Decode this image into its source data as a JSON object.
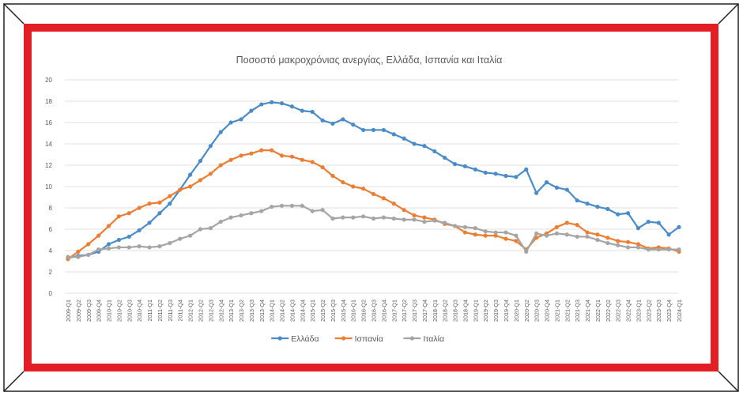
{
  "colors": {
    "border": "#e31e24",
    "frame_line": "#222222",
    "series": [
      "#4a8bc9",
      "#ed7d31",
      "#a5a5a5"
    ],
    "grid": "#d9d9d9",
    "text": "#595959"
  },
  "chart_data": {
    "type": "line",
    "title": "Ποσοστό μακροχρόνιας ανεργίας, Ελλάδα, Ισπανία και Ιταλία",
    "xlabel": "",
    "ylabel": "",
    "ylim": [
      0,
      20
    ],
    "yticks": [
      0,
      2,
      4,
      6,
      8,
      10,
      12,
      14,
      16,
      18,
      20
    ],
    "grid": true,
    "legend_position": "bottom",
    "categories": [
      "2009-Q1",
      "2009-Q2",
      "2009-Q3",
      "2009-Q4",
      "2010-Q1",
      "2010-Q2",
      "2010-Q3",
      "2010-Q4",
      "2011-Q1",
      "2011-Q2",
      "2011-Q3",
      "2011-Q4",
      "2012-Q1",
      "2012-Q2",
      "2012-Q3",
      "2012-Q4",
      "2013-Q1",
      "2013-Q2",
      "2013-Q3",
      "2013-Q4",
      "2014-Q1",
      "2014-Q2",
      "2014-Q3",
      "2014-Q4",
      "2015-Q1",
      "2015-Q2",
      "2015-Q3",
      "2015-Q4",
      "2016-Q1",
      "2016-Q2",
      "2016-Q3",
      "2016-Q4",
      "2017-Q1",
      "2017-Q2",
      "2017-Q3",
      "2017-Q4",
      "2018-Q1",
      "2018-Q2",
      "2018-Q3",
      "2018-Q4",
      "2019-Q1",
      "2019-Q2",
      "2019-Q3",
      "2019-Q4",
      "2020-Q1",
      "2020-Q2",
      "2020-Q3",
      "2020-Q4",
      "2021-Q1",
      "2021-Q2",
      "2021-Q3",
      "2021-Q4",
      "2022-Q1",
      "2022-Q2",
      "2022-Q3",
      "2022-Q4",
      "2023-Q1",
      "2023-Q2",
      "2023-Q3",
      "2023-Q4",
      "2024-Q1"
    ],
    "series": [
      {
        "name": "Ελλάδα",
        "values": [
          3.3,
          3.5,
          3.6,
          3.9,
          4.6,
          5.0,
          5.3,
          5.9,
          6.6,
          7.5,
          8.4,
          9.7,
          11.1,
          12.4,
          13.8,
          15.1,
          16.0,
          16.3,
          17.1,
          17.7,
          17.9,
          17.8,
          17.5,
          17.1,
          17.0,
          16.2,
          15.9,
          16.3,
          15.8,
          15.3,
          15.3,
          15.3,
          14.9,
          14.5,
          14.0,
          13.8,
          13.3,
          12.7,
          12.1,
          11.9,
          11.6,
          11.3,
          11.2,
          11.0,
          10.9,
          11.6,
          9.4,
          10.4,
          9.9,
          9.7,
          8.7,
          8.4,
          8.1,
          7.9,
          7.4,
          7.5,
          6.1,
          6.7,
          6.6,
          5.5,
          6.2
        ]
      },
      {
        "name": "Ισπανία",
        "values": [
          3.2,
          3.9,
          4.6,
          5.4,
          6.3,
          7.2,
          7.5,
          8.0,
          8.4,
          8.5,
          9.1,
          9.7,
          10.0,
          10.6,
          11.2,
          12.0,
          12.5,
          12.9,
          13.1,
          13.4,
          13.4,
          12.9,
          12.8,
          12.5,
          12.3,
          11.8,
          11.0,
          10.4,
          10.0,
          9.8,
          9.3,
          8.9,
          8.4,
          7.8,
          7.3,
          7.1,
          6.9,
          6.5,
          6.3,
          5.7,
          5.5,
          5.4,
          5.4,
          5.1,
          4.9,
          4.1,
          5.2,
          5.6,
          6.2,
          6.6,
          6.4,
          5.7,
          5.5,
          5.2,
          4.9,
          4.8,
          4.6,
          4.2,
          4.3,
          4.2,
          3.9
        ]
      },
      {
        "name": "Ιταλία",
        "values": [
          3.4,
          3.4,
          3.6,
          4.1,
          4.2,
          4.3,
          4.3,
          4.4,
          4.3,
          4.4,
          4.7,
          5.1,
          5.4,
          6.0,
          6.1,
          6.7,
          7.1,
          7.3,
          7.5,
          7.7,
          8.1,
          8.2,
          8.2,
          8.2,
          7.7,
          7.8,
          7.0,
          7.1,
          7.1,
          7.2,
          7.0,
          7.1,
          7.0,
          6.9,
          6.9,
          6.7,
          6.8,
          6.6,
          6.3,
          6.2,
          6.1,
          5.8,
          5.7,
          5.7,
          5.4,
          3.9,
          5.6,
          5.4,
          5.6,
          5.5,
          5.3,
          5.3,
          5.0,
          4.7,
          4.5,
          4.3,
          4.3,
          4.1,
          4.1,
          4.1,
          4.1
        ]
      }
    ]
  }
}
